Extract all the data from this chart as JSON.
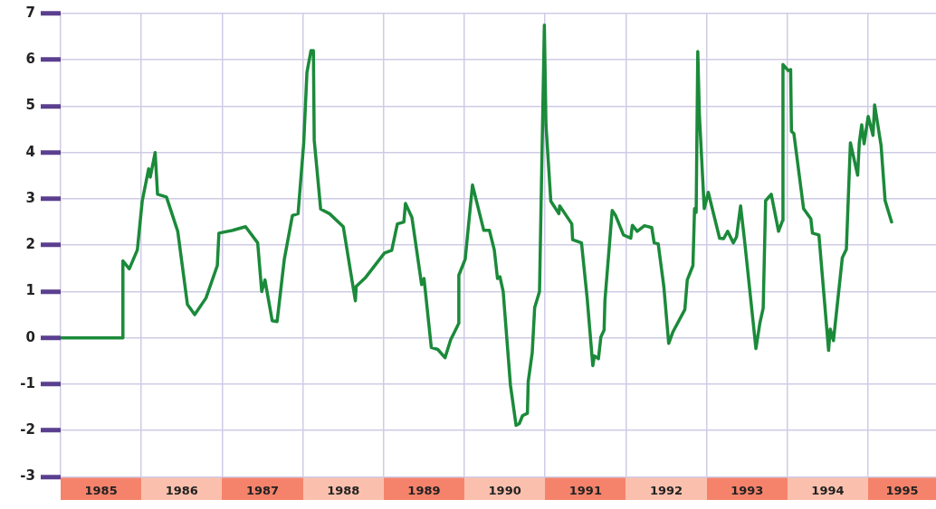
{
  "chart_data": {
    "type": "line",
    "x": [
      1985.0,
      1985.77,
      1985.771,
      1985.85,
      1985.95,
      1986.01,
      1986.09,
      1986.11,
      1986.17,
      1986.2,
      1986.31,
      1986.45,
      1986.57,
      1986.66,
      1986.8,
      1986.94,
      1986.96,
      1987.13,
      1987.29,
      1987.44,
      1987.49,
      1987.53,
      1987.62,
      1987.68,
      1987.77,
      1987.87,
      1987.94,
      1988.01,
      1988.05,
      1988.1,
      1988.13,
      1988.14,
      1988.22,
      1988.33,
      1988.5,
      1988.62,
      1988.65,
      1988.66,
      1988.77,
      1989.01,
      1989.1,
      1989.17,
      1989.25,
      1989.27,
      1989.35,
      1989.47,
      1989.5,
      1989.59,
      1989.67,
      1989.76,
      1989.83,
      1989.93,
      1989.931,
      1990.01,
      1990.1,
      1990.24,
      1990.31,
      1990.37,
      1990.41,
      1990.44,
      1990.48,
      1990.57,
      1990.64,
      1990.68,
      1990.72,
      1990.78,
      1990.79,
      1990.84,
      1990.87,
      1990.93,
      1990.99,
      1991.01,
      1991.07,
      1991.17,
      1991.18,
      1991.33,
      1991.34,
      1991.45,
      1991.52,
      1991.59,
      1991.61,
      1991.66,
      1991.69,
      1991.73,
      1991.74,
      1991.83,
      1991.87,
      1991.97,
      1992.06,
      1992.08,
      1992.14,
      1992.23,
      1992.32,
      1992.35,
      1992.4,
      1992.47,
      1992.53,
      1992.58,
      1992.73,
      1992.76,
      1992.83,
      1992.85,
      1992.87,
      1992.89,
      1992.91,
      1992.97,
      1993.02,
      1993.16,
      1993.21,
      1993.26,
      1993.33,
      1993.37,
      1993.42,
      1993.47,
      1993.61,
      1993.66,
      1993.7,
      1993.73,
      1993.8,
      1993.89,
      1993.94,
      1993.945,
      1994.01,
      1994.04,
      1994.05,
      1994.08,
      1994.2,
      1994.29,
      1994.31,
      1994.39,
      1994.51,
      1994.53,
      1994.57,
      1994.68,
      1994.73,
      1994.78,
      1994.87,
      1994.89,
      1994.92,
      1994.95,
      1995.0,
      1995.06,
      1995.08,
      1995.16,
      1995.21,
      1995.29
    ],
    "values": [
      0,
      0,
      1.66,
      1.49,
      1.9,
      2.95,
      3.65,
      3.47,
      4.0,
      3.1,
      3.04,
      2.3,
      0.72,
      0.5,
      0.86,
      1.56,
      2.26,
      2.32,
      2.4,
      2.05,
      1.0,
      1.25,
      0.37,
      0.35,
      1.7,
      2.64,
      2.68,
      4.2,
      5.73,
      6.2,
      6.2,
      4.27,
      2.78,
      2.68,
      2.4,
      1.11,
      0.8,
      1.11,
      1.29,
      1.83,
      1.89,
      2.46,
      2.5,
      2.9,
      2.6,
      1.15,
      1.28,
      -0.21,
      -0.25,
      -0.43,
      -0.04,
      0.31,
      1.35,
      1.7,
      3.3,
      2.32,
      2.32,
      1.9,
      1.28,
      1.32,
      1.0,
      -1.02,
      -1.89,
      -1.85,
      -1.68,
      -1.63,
      -0.95,
      -0.32,
      0.65,
      1.0,
      6.75,
      4.6,
      2.95,
      2.68,
      2.85,
      2.46,
      2.12,
      2.05,
      0.86,
      -0.6,
      -0.39,
      -0.45,
      0.02,
      0.17,
      0.8,
      2.75,
      2.65,
      2.22,
      2.15,
      2.43,
      2.3,
      2.42,
      2.38,
      2.05,
      2.03,
      1.1,
      -0.12,
      0.12,
      0.61,
      1.25,
      1.56,
      2.79,
      2.71,
      6.18,
      4.81,
      2.79,
      3.14,
      2.15,
      2.14,
      2.3,
      2.05,
      2.18,
      2.85,
      2.09,
      -0.23,
      0.33,
      0.64,
      2.96,
      3.1,
      2.3,
      2.53,
      5.9,
      5.77,
      5.79,
      4.46,
      4.41,
      2.79,
      2.57,
      2.26,
      2.22,
      -0.27,
      0.19,
      -0.06,
      1.73,
      1.91,
      4.21,
      3.51,
      4.21,
      4.6,
      4.19,
      4.78,
      4.37,
      5.03,
      4.15,
      2.96,
      2.5
    ],
    "color": "#1b8a3a",
    "xlim": [
      1985,
      1995.84
    ],
    "xticks": [
      {
        "value": 1985,
        "label": null
      },
      {
        "value": 1985.5,
        "label": "1985"
      },
      {
        "value": 1986,
        "label": null
      },
      {
        "value": 1986.5,
        "label": "1986"
      },
      {
        "value": 1987,
        "label": null
      },
      {
        "value": 1987.5,
        "label": "1987"
      },
      {
        "value": 1988,
        "label": null
      },
      {
        "value": 1988.5,
        "label": "1988"
      },
      {
        "value": 1989,
        "label": null
      },
      {
        "value": 1989.5,
        "label": "1989"
      },
      {
        "value": 1990,
        "label": null
      },
      {
        "value": 1990.5,
        "label": "1990"
      },
      {
        "value": 1991,
        "label": null
      },
      {
        "value": 1991.5,
        "label": "1991"
      },
      {
        "value": 1992,
        "label": null
      },
      {
        "value": 1992.5,
        "label": "1992"
      },
      {
        "value": 1993,
        "label": null
      },
      {
        "value": 1993.5,
        "label": "1993"
      },
      {
        "value": 1994,
        "label": null
      },
      {
        "value": 1994.5,
        "label": "1994"
      },
      {
        "value": 1995,
        "label": null
      },
      {
        "value": 1995.42,
        "label": "1995"
      }
    ],
    "ylim": [
      -3,
      7
    ],
    "yticks": [
      -3,
      -2,
      -1,
      0,
      1,
      2,
      3,
      4,
      5,
      6,
      7
    ],
    "grid": true,
    "legend": false,
    "marker": "none",
    "line_style": "solid"
  }
}
